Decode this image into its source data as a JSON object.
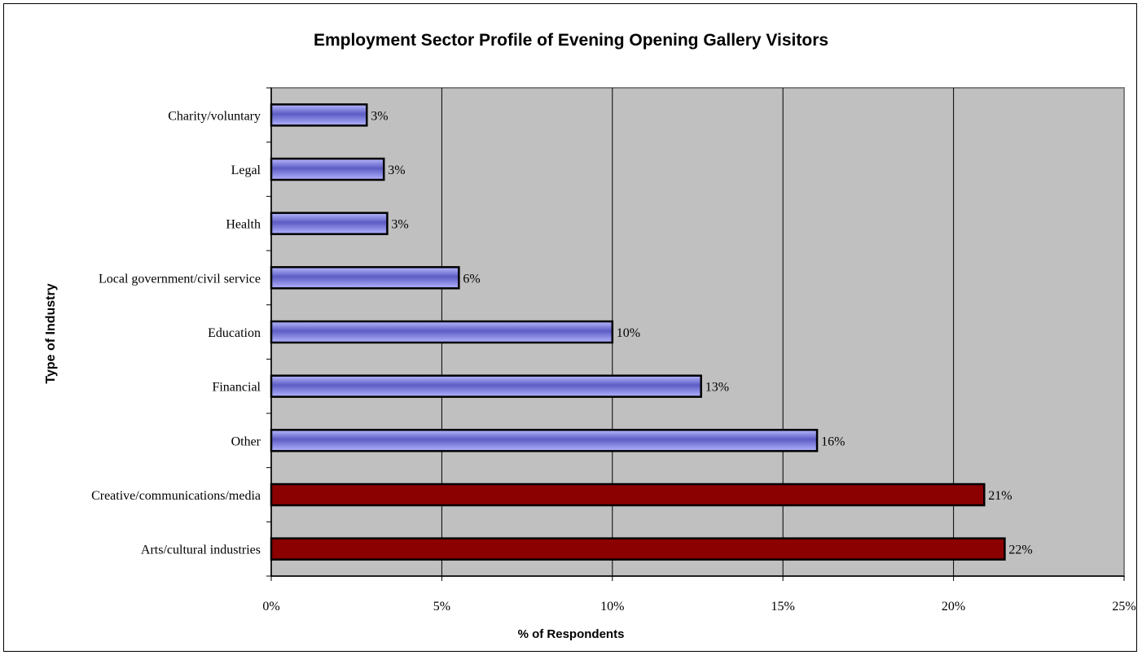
{
  "chart_data": {
    "type": "bar",
    "orientation": "horizontal",
    "title": "Employment Sector Profile of Evening Opening Gallery Visitors",
    "xlabel": "% of Respondents",
    "ylabel": "Type of Industry",
    "xlim": [
      0,
      25
    ],
    "xticks": [
      "0%",
      "5%",
      "10%",
      "15%",
      "20%",
      "25%"
    ],
    "grid": true,
    "categories": [
      "Charity/voluntary",
      "Legal",
      "Health",
      "Local government/civil service",
      "Education",
      "Financial",
      "Other",
      "Creative/communications/media",
      "Arts/cultural industries"
    ],
    "values": [
      2.8,
      3.3,
      3.4,
      5.5,
      10.0,
      12.6,
      16.0,
      20.9,
      21.5
    ],
    "labels": [
      "3%",
      "3%",
      "3%",
      "6%",
      "10%",
      "13%",
      "16%",
      "21%",
      "22%"
    ],
    "highlighted": [
      false,
      false,
      false,
      false,
      false,
      false,
      false,
      true,
      true
    ],
    "colors": {
      "plot_background": "#c0c0c0",
      "bar_default": "#9999ff",
      "bar_highlight": "#8b0000",
      "grid": "#000000"
    }
  }
}
